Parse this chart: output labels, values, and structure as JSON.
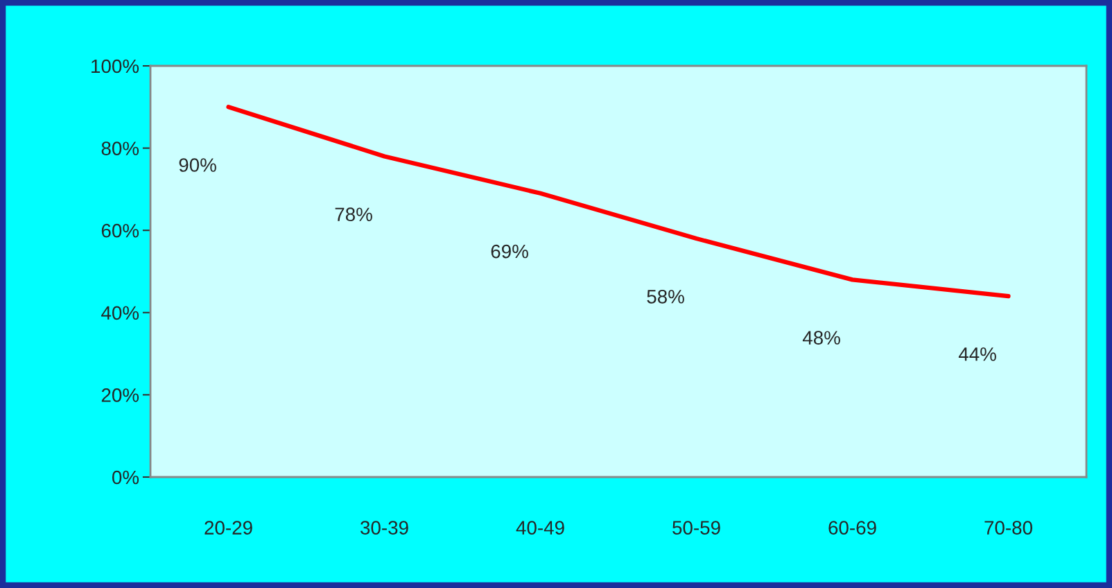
{
  "chart_data": {
    "type": "line",
    "categories": [
      "20-29",
      "30-39",
      "40-49",
      "50-59",
      "60-69",
      "70-80"
    ],
    "series": [
      {
        "color": "#ff0000",
        "values": [
          90,
          78,
          69,
          58,
          48,
          44
        ],
        "value_labels": [
          "90%",
          "78%",
          "69%",
          "58%",
          "48%",
          "44%"
        ]
      }
    ],
    "ylim": [
      0,
      100
    ],
    "yticks": [
      {
        "value": 0,
        "label": "0%"
      },
      {
        "value": 20,
        "label": "20%"
      },
      {
        "value": 40,
        "label": "40%"
      },
      {
        "value": 60,
        "label": "60%"
      },
      {
        "value": 80,
        "label": "80%"
      },
      {
        "value": 100,
        "label": "100%"
      }
    ],
    "grid": false,
    "legend": false,
    "marker": "none",
    "line_style": "solid"
  }
}
